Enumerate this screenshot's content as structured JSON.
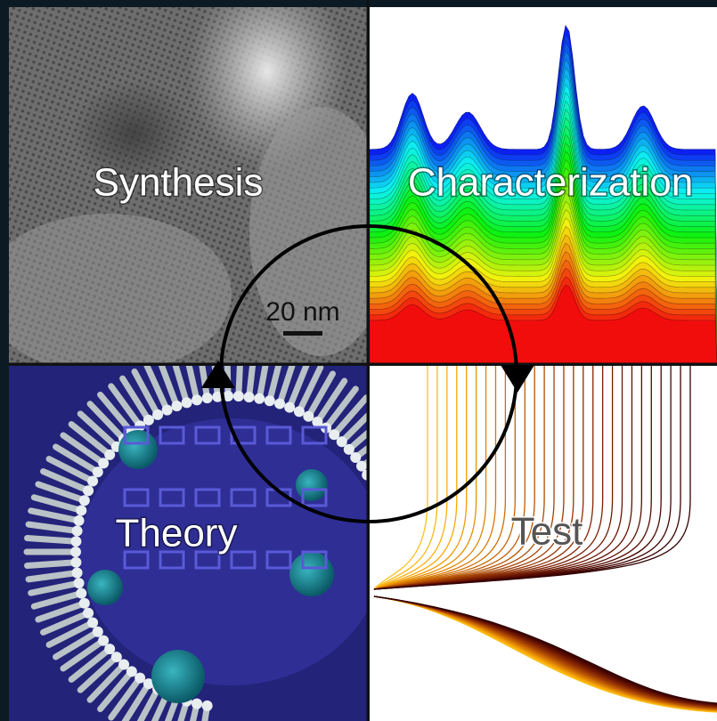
{
  "quadrants": [
    {
      "label": "Synthesis"
    },
    {
      "label": "Characterization"
    },
    {
      "label": "Theory"
    },
    {
      "label": "Test"
    }
  ],
  "scale_bar": "20 nm"
}
